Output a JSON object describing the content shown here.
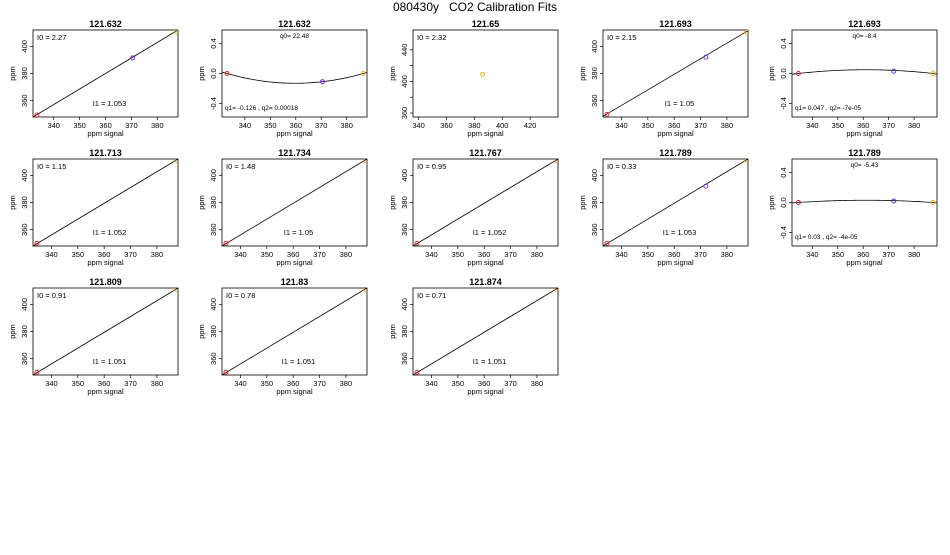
{
  "page_title": "080430y   CO2 Calibration Fits",
  "chart_data": [
    {
      "title": "121.632",
      "type": "linear",
      "xlim": [
        332,
        388
      ],
      "ylim": [
        348,
        412
      ],
      "xticks": [
        340,
        350,
        360,
        370,
        380
      ],
      "yticks": [
        360,
        380,
        400
      ],
      "xlabel": "ppm signal",
      "ylabel": "ppm",
      "line": [
        [
          332,
          348
        ],
        [
          388,
          412
        ]
      ],
      "points": [
        {
          "x": 333.5,
          "y": 349.5,
          "color": "red"
        },
        {
          "x": 370.5,
          "y": 391.5,
          "color": "blue"
        },
        {
          "x": 387.5,
          "y": 410.5,
          "color": "orange"
        }
      ],
      "coef_a": "I0 =  2.27",
      "coef_b": "I1 =  1.053"
    },
    {
      "title": "121.632",
      "type": "quad",
      "xlim": [
        331,
        388
      ],
      "ylim": [
        -0.58,
        0.58
      ],
      "xticks": [
        340,
        350,
        360,
        370,
        380
      ],
      "yticks": [
        -0.4,
        0.0,
        0.4
      ],
      "ytick_labels": [
        "-0.4",
        "0.0",
        "0.4"
      ],
      "xlabel": "ppm signal",
      "ylabel": "ppm",
      "curve": {
        "x0": 333,
        "y0": 0.0,
        "x1": 358.5,
        "y1": -0.13,
        "x2": 386.5,
        "y2": 0.0
      },
      "points": [
        {
          "x": 333,
          "y": 0.0,
          "color": "red"
        },
        {
          "x": 370.5,
          "y": -0.11,
          "color": "blue"
        },
        {
          "x": 386.5,
          "y": 0.0,
          "color": "orange"
        }
      ],
      "coef_a": "q0= 22.48",
      "coef_b": "q1= -0.126 , q2= 0.00018"
    },
    {
      "title": "121.65",
      "type": "single",
      "xlim": [
        336,
        440
      ],
      "ylim": [
        355,
        465
      ],
      "xticks": [
        340,
        360,
        380,
        400,
        420
      ],
      "yticks": [
        360,
        380,
        400,
        420,
        440
      ],
      "ytick_labels": [
        "360",
        "",
        "400",
        "",
        "440"
      ],
      "xlabel": "ppm signal",
      "ylabel": "ppm",
      "points": [
        {
          "x": 386,
          "y": 409,
          "color": "orange"
        }
      ],
      "coef_a": "I0 =  2.32",
      "coef_b": ""
    },
    {
      "title": "121.693",
      "type": "linear",
      "xlim": [
        333,
        388
      ],
      "ylim": [
        348,
        412
      ],
      "xticks": [
        340,
        350,
        360,
        370,
        380
      ],
      "yticks": [
        360,
        380,
        400
      ],
      "xlabel": "ppm signal",
      "ylabel": "ppm",
      "line": [
        [
          333,
          348.5
        ],
        [
          388,
          411.5
        ]
      ],
      "points": [
        {
          "x": 334.5,
          "y": 350,
          "color": "red"
        },
        {
          "x": 372,
          "y": 392,
          "color": "blue"
        },
        {
          "x": 387.5,
          "y": 410.5,
          "color": "orange"
        }
      ],
      "coef_a": "I0 =  2.15",
      "coef_b": "I1 =  1.05"
    },
    {
      "title": "121.693",
      "type": "quad",
      "xlim": [
        332,
        389
      ],
      "ylim": [
        -0.58,
        0.58
      ],
      "xticks": [
        340,
        350,
        360,
        370,
        380
      ],
      "yticks": [
        -0.4,
        0.0,
        0.4
      ],
      "ytick_labels": [
        "-0.4",
        "0.0",
        "0.4"
      ],
      "xlabel": "ppm signal",
      "ylabel": "ppm",
      "curve": {
        "x0": 334.5,
        "y0": 0.0,
        "x1": 360,
        "y1": 0.05,
        "x2": 387.5,
        "y2": 0.0
      },
      "points": [
        {
          "x": 334.5,
          "y": 0.0,
          "color": "red"
        },
        {
          "x": 372,
          "y": 0.03,
          "color": "blue"
        },
        {
          "x": 387.5,
          "y": 0.0,
          "color": "orange"
        }
      ],
      "coef_a": "q0= -8.4",
      "coef_b": "q1= 0.047 , q2= -7e-05"
    },
    {
      "title": "121.713",
      "type": "linear",
      "xlim": [
        333,
        388
      ],
      "ylim": [
        348,
        412
      ],
      "xticks": [
        340,
        350,
        360,
        370,
        380
      ],
      "yticks": [
        360,
        380,
        400
      ],
      "xlabel": "ppm signal",
      "ylabel": "ppm",
      "line": [
        [
          333,
          348
        ],
        [
          388,
          412
        ]
      ],
      "points": [
        {
          "x": 334.5,
          "y": 350,
          "color": "red"
        },
        {
          "x": 387.5,
          "y": 411,
          "color": "orange"
        }
      ],
      "coef_a": "I0 =  1.15",
      "coef_b": "I1 =  1.052"
    },
    {
      "title": "121.734",
      "type": "linear",
      "xlim": [
        333,
        388
      ],
      "ylim": [
        348,
        412
      ],
      "xticks": [
        340,
        350,
        360,
        370,
        380
      ],
      "yticks": [
        360,
        380,
        400
      ],
      "xlabel": "ppm signal",
      "ylabel": "ppm",
      "line": [
        [
          333,
          348
        ],
        [
          388,
          412
        ]
      ],
      "points": [
        {
          "x": 334.5,
          "y": 350,
          "color": "red"
        },
        {
          "x": 387.5,
          "y": 411,
          "color": "orange"
        }
      ],
      "coef_a": "I0 =  1.48",
      "coef_b": "I1 =  1.05"
    },
    {
      "title": "121.767",
      "type": "linear",
      "xlim": [
        333,
        388
      ],
      "ylim": [
        348,
        412
      ],
      "xticks": [
        340,
        350,
        360,
        370,
        380
      ],
      "yticks": [
        360,
        380,
        400
      ],
      "xlabel": "ppm signal",
      "ylabel": "ppm",
      "line": [
        [
          333,
          348
        ],
        [
          388,
          412
        ]
      ],
      "points": [
        {
          "x": 334.5,
          "y": 350,
          "color": "red"
        },
        {
          "x": 387.5,
          "y": 411,
          "color": "orange"
        }
      ],
      "coef_a": "I0 =  0.95",
      "coef_b": "I1 =  1.052"
    },
    {
      "title": "121.789",
      "type": "linear",
      "xlim": [
        333,
        388
      ],
      "ylim": [
        348,
        412
      ],
      "xticks": [
        340,
        350,
        360,
        370,
        380
      ],
      "yticks": [
        360,
        380,
        400
      ],
      "xlabel": "ppm signal",
      "ylabel": "ppm",
      "line": [
        [
          333,
          348
        ],
        [
          388,
          412
        ]
      ],
      "points": [
        {
          "x": 334.5,
          "y": 350,
          "color": "red"
        },
        {
          "x": 372,
          "y": 392,
          "color": "blue"
        },
        {
          "x": 387.5,
          "y": 411,
          "color": "orange"
        }
      ],
      "coef_a": "I0 =  0.33",
      "coef_b": "I1 =  1.053"
    },
    {
      "title": "121.789",
      "type": "quad",
      "xlim": [
        332,
        389
      ],
      "ylim": [
        -0.58,
        0.58
      ],
      "xticks": [
        340,
        350,
        360,
        370,
        380
      ],
      "yticks": [
        -0.4,
        0.0,
        0.4
      ],
      "ytick_labels": [
        "-0.4",
        "0.0",
        "0.4"
      ],
      "xlabel": "ppm signal",
      "ylabel": "ppm",
      "curve": {
        "x0": 334.5,
        "y0": 0.0,
        "x1": 360,
        "y1": 0.03,
        "x2": 387.5,
        "y2": 0.0
      },
      "points": [
        {
          "x": 334.5,
          "y": 0.0,
          "color": "red"
        },
        {
          "x": 372,
          "y": 0.02,
          "color": "blue"
        },
        {
          "x": 387.5,
          "y": 0.0,
          "color": "orange"
        }
      ],
      "coef_a": "q0= -5.43",
      "coef_b": "q1= 0.03 , q2= -4e-05"
    },
    {
      "title": "121.809",
      "type": "linear",
      "xlim": [
        333,
        388
      ],
      "ylim": [
        348,
        412
      ],
      "xticks": [
        340,
        350,
        360,
        370,
        380
      ],
      "yticks": [
        360,
        380,
        400
      ],
      "xlabel": "ppm signal",
      "ylabel": "ppm",
      "line": [
        [
          333,
          348
        ],
        [
          388,
          412
        ]
      ],
      "points": [
        {
          "x": 334.5,
          "y": 350,
          "color": "red"
        },
        {
          "x": 387.5,
          "y": 411,
          "color": "orange"
        }
      ],
      "coef_a": "I0 =  0.91",
      "coef_b": "I1 =  1.051"
    },
    {
      "title": "121.83",
      "type": "linear",
      "xlim": [
        333,
        388
      ],
      "ylim": [
        348,
        412
      ],
      "xticks": [
        340,
        350,
        360,
        370,
        380
      ],
      "yticks": [
        360,
        380,
        400
      ],
      "xlabel": "ppm signal",
      "ylabel": "ppm",
      "line": [
        [
          333,
          348
        ],
        [
          388,
          412
        ]
      ],
      "points": [
        {
          "x": 334.5,
          "y": 350,
          "color": "red"
        },
        {
          "x": 387.5,
          "y": 411,
          "color": "orange"
        }
      ],
      "coef_a": "I0 =  0.78",
      "coef_b": "I1 =  1.051"
    },
    {
      "title": "121.874",
      "type": "linear",
      "xlim": [
        333,
        388
      ],
      "ylim": [
        348,
        412
      ],
      "xticks": [
        340,
        350,
        360,
        370,
        380
      ],
      "yticks": [
        360,
        380,
        400
      ],
      "xlabel": "ppm signal",
      "ylabel": "ppm",
      "line": [
        [
          333,
          348
        ],
        [
          388,
          412
        ]
      ],
      "points": [
        {
          "x": 334.5,
          "y": 350,
          "color": "red"
        },
        {
          "x": 387.5,
          "y": 411,
          "color": "orange"
        }
      ],
      "coef_a": "I0 =  0.71",
      "coef_b": "I1 =  1.051"
    }
  ],
  "colors": {
    "red": "#e0202a",
    "blue": "#6a1fd0",
    "orange": "#f5a10b",
    "line": "#000000"
  }
}
